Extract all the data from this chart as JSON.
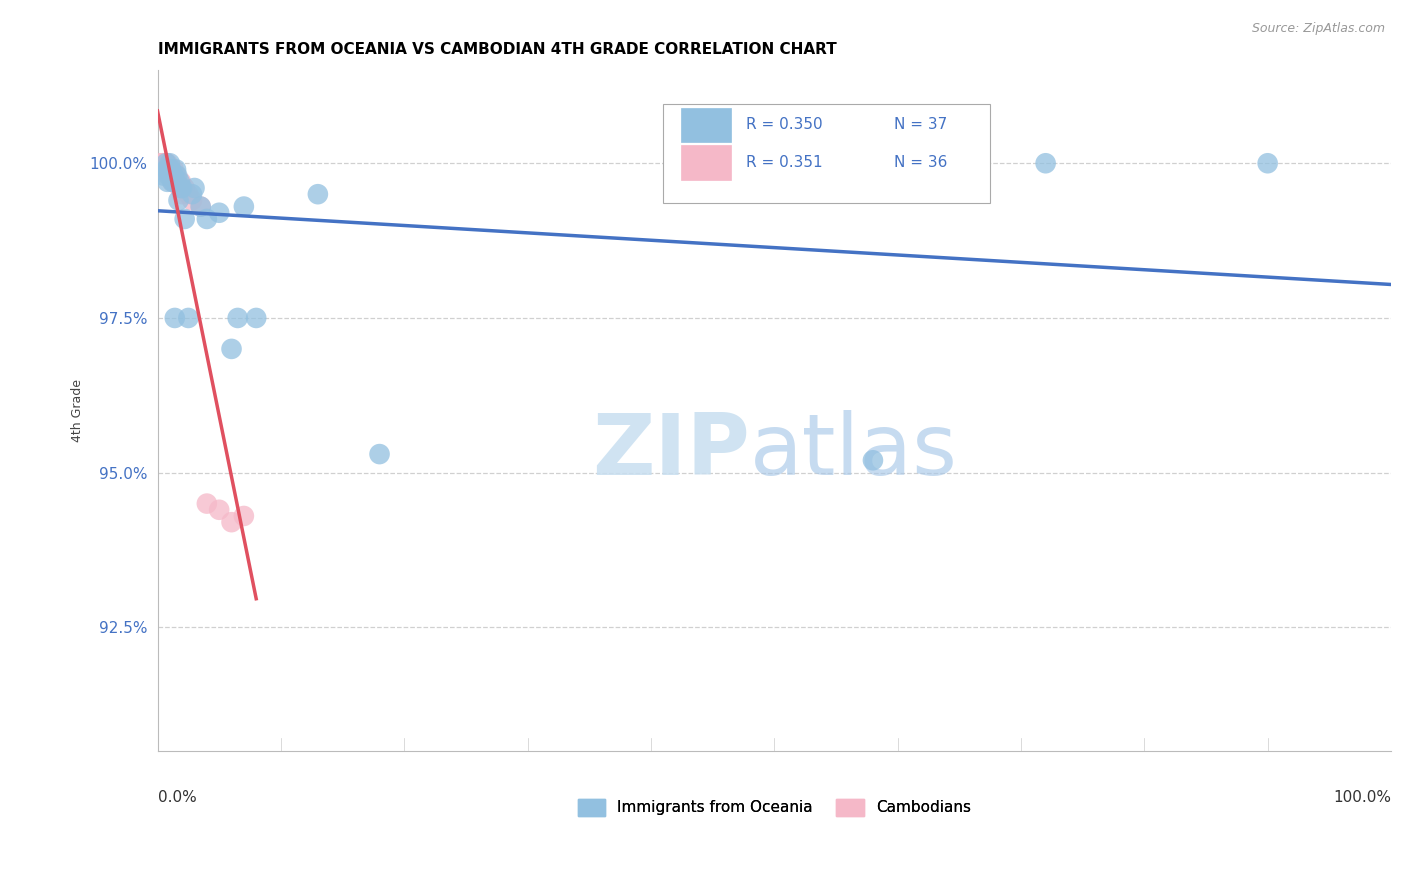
{
  "title": "IMMIGRANTS FROM OCEANIA VS CAMBODIAN 4TH GRADE CORRELATION CHART",
  "source": "Source: ZipAtlas.com",
  "ylabel": "4th Grade",
  "ytick_labels": [
    "92.5%",
    "95.0%",
    "97.5%",
    "100.0%"
  ],
  "ytick_values": [
    92.5,
    95.0,
    97.5,
    100.0
  ],
  "xlim": [
    0.0,
    100.0
  ],
  "ylim": [
    90.5,
    101.5
  ],
  "legend_blue_r": "R = 0.350",
  "legend_blue_n": "N = 37",
  "legend_pink_r": "R = 0.351",
  "legend_pink_n": "N = 36",
  "blue_scatter_x": [
    0.5,
    0.7,
    0.7,
    0.8,
    0.8,
    0.9,
    1.0,
    1.0,
    1.1,
    1.2,
    1.2,
    1.3,
    1.3,
    1.4,
    1.5,
    1.5,
    1.6,
    1.7,
    1.8,
    1.9,
    2.0,
    2.2,
    2.5,
    2.8,
    3.0,
    3.5,
    4.0,
    5.0,
    6.0,
    6.5,
    7.0,
    8.0,
    13.0,
    18.0,
    58.0,
    72.0,
    90.0
  ],
  "blue_scatter_y": [
    99.8,
    100.0,
    99.9,
    99.9,
    99.7,
    99.8,
    100.0,
    99.9,
    99.9,
    99.8,
    99.7,
    99.8,
    99.7,
    97.5,
    99.9,
    99.7,
    99.8,
    99.4,
    99.7,
    99.6,
    99.6,
    99.1,
    97.5,
    99.5,
    99.6,
    99.3,
    99.1,
    99.2,
    97.0,
    97.5,
    99.3,
    97.5,
    99.5,
    95.3,
    95.2,
    100.0,
    100.0
  ],
  "pink_scatter_x": [
    0.2,
    0.3,
    0.4,
    0.4,
    0.5,
    0.5,
    0.6,
    0.6,
    0.7,
    0.7,
    0.7,
    0.8,
    0.8,
    0.9,
    0.9,
    1.0,
    1.0,
    1.1,
    1.1,
    1.2,
    1.3,
    1.3,
    1.4,
    1.5,
    1.6,
    1.8,
    1.9,
    2.0,
    2.2,
    2.5,
    2.8,
    3.5,
    4.0,
    5.0,
    6.0,
    7.0
  ],
  "pink_scatter_y": [
    100.0,
    99.9,
    100.0,
    99.9,
    100.0,
    99.9,
    100.0,
    99.9,
    100.0,
    100.0,
    99.9,
    100.0,
    99.9,
    99.8,
    99.9,
    99.9,
    99.8,
    99.9,
    99.8,
    99.7,
    99.9,
    99.7,
    99.8,
    99.8,
    99.7,
    99.6,
    99.7,
    99.5,
    99.6,
    99.5,
    99.4,
    99.3,
    94.5,
    94.4,
    94.2,
    94.3
  ],
  "blue_color": "#92c0e0",
  "pink_color": "#f5b8c8",
  "blue_line_color": "#4472c4",
  "pink_line_color": "#e05060",
  "background_color": "#ffffff",
  "grid_color": "#d0d0d0",
  "ytick_color": "#4472c4",
  "xtick_color": "#333333",
  "title_fontsize": 11,
  "legend_fontsize": 11,
  "watermark_zip_color": "#c8dff0",
  "watermark_atlas_color": "#a8c8e8"
}
